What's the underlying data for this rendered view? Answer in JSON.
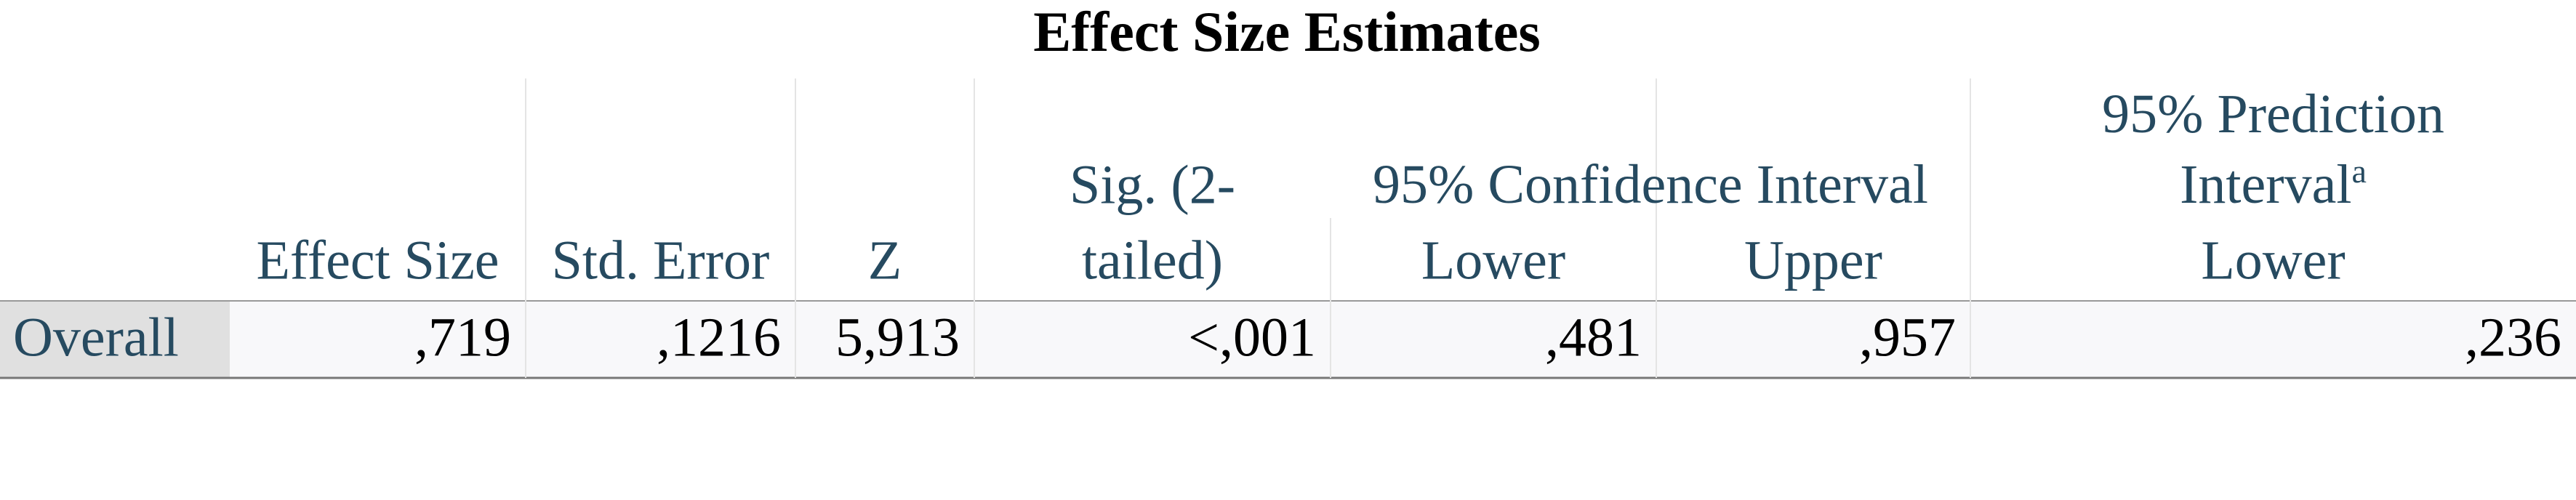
{
  "title": "Effect Size Estimates",
  "columns": [
    {
      "lines": [
        "Effect Size"
      ]
    },
    {
      "lines": [
        "Std. Error"
      ]
    },
    {
      "lines": [
        "Z"
      ]
    },
    {
      "lines": [
        "Sig. (2-",
        "tailed)"
      ]
    },
    {
      "lines": [
        "Lower"
      ]
    },
    {
      "lines": [
        "Upper"
      ]
    },
    {
      "lines": [
        "Lower"
      ]
    }
  ],
  "groups": [
    {
      "lines": [
        "95% Confidence Interval"
      ]
    },
    {
      "lines": [
        "95% Prediction",
        "Interval"
      ],
      "footnote": "a"
    }
  ],
  "rows": [
    {
      "label": "Overall",
      "cells": [
        ",719",
        ",1216",
        "5,913",
        "<,001",
        ",481",
        ",957",
        ",236"
      ]
    }
  ]
}
